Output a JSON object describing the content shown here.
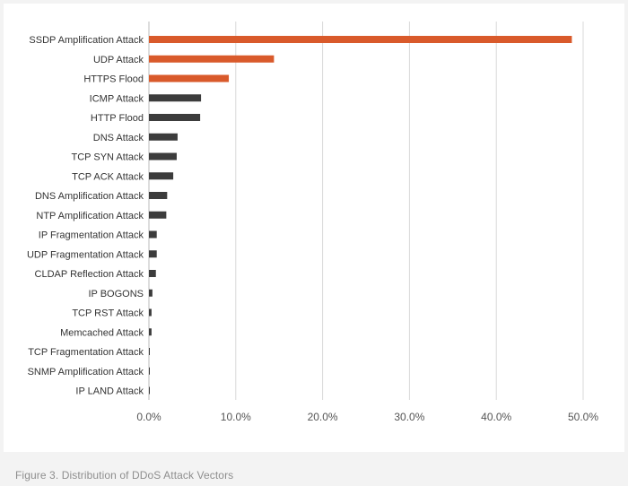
{
  "caption": "Figure 3. Distribution of DDoS Attack Vectors",
  "colors": {
    "highlight": "#d95a2b",
    "default": "#3c3c3c",
    "grid": "#d9d9d9",
    "axis": "#bbbbbb"
  },
  "chart_data": {
    "type": "bar",
    "orientation": "horizontal",
    "title": "",
    "xlabel": "",
    "ylabel": "",
    "xlim": [
      0,
      50
    ],
    "value_unit": "%",
    "x_ticks": [
      "0.0%",
      "10.0%",
      "20.0%",
      "30.0%",
      "40.0%",
      "50.0%"
    ],
    "grid": "vertical",
    "categories": [
      "SSDP Amplification Attack",
      "UDP Attack",
      "HTTPS Flood",
      "ICMP Attack",
      "HTTP Flood",
      "DNS Attack",
      "TCP SYN Attack",
      "TCP ACK Attack",
      "DNS Amplification Attack",
      "NTP Amplification Attack",
      "IP Fragmentation Attack",
      "UDP Fragmentation Attack",
      "CLDAP Reflection Attack",
      "IP BOGONS",
      "TCP RST Attack",
      "Memcached Attack",
      "TCP Fragmentation Attack",
      "SNMP Amplification Attack",
      "IP LAND Attack"
    ],
    "values": [
      48.7,
      14.4,
      9.2,
      6.0,
      5.9,
      3.3,
      3.2,
      2.8,
      2.1,
      2.0,
      0.9,
      0.9,
      0.8,
      0.4,
      0.3,
      0.3,
      0.1,
      0.1,
      0.1
    ],
    "highlighted": [
      true,
      true,
      true,
      false,
      false,
      false,
      false,
      false,
      false,
      false,
      false,
      false,
      false,
      false,
      false,
      false,
      false,
      false,
      false
    ]
  }
}
